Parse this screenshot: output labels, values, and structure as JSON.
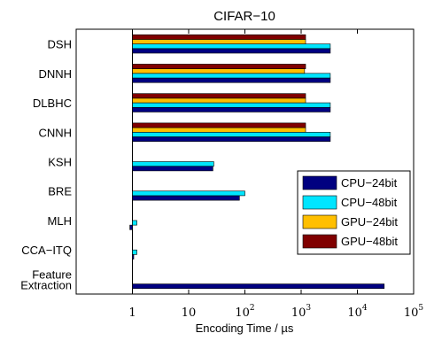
{
  "chart_data": {
    "type": "bar",
    "orientation": "horizontal",
    "title": "CIFAR−10",
    "xlabel": "Encoding Time / µs",
    "ylabel": "",
    "x_scale": "log",
    "xlim": [
      0.1,
      100000
    ],
    "x_ticks": [
      {
        "value": 1,
        "base": "1",
        "exp": ""
      },
      {
        "value": 10,
        "base": "10",
        "exp": ""
      },
      {
        "value": 100,
        "base": "10",
        "exp": "2"
      },
      {
        "value": 1000,
        "base": "10",
        "exp": "3"
      },
      {
        "value": 10000,
        "base": "10",
        "exp": "4"
      },
      {
        "value": 100000,
        "base": "10",
        "exp": "5"
      }
    ],
    "reference_line_x": 1,
    "categories": [
      "DSH",
      "DNNH",
      "DLBHC",
      "CNNH",
      "KSH",
      "BRE",
      "MLH",
      "CCA−ITQ",
      "Feature Extraction"
    ],
    "category_lines": {
      "Feature Extraction": [
        "Feature",
        "Extraction"
      ]
    },
    "series": [
      {
        "name": "CPU−24bit",
        "color": "#000080",
        "values": [
          3300,
          3300,
          3300,
          3300,
          27,
          80,
          0.9,
          1.05,
          30000
        ]
      },
      {
        "name": "CPU−48bit",
        "color": "#00e5ff",
        "values": [
          3300,
          3300,
          3300,
          3300,
          28,
          100,
          1.2,
          1.2,
          null
        ]
      },
      {
        "name": "GPU−24bit",
        "color": "#ffbf00",
        "values": [
          1200,
          1150,
          1200,
          1200,
          null,
          null,
          null,
          null,
          null
        ]
      },
      {
        "name": "GPU−48bit",
        "color": "#800000",
        "values": [
          1200,
          1200,
          1200,
          1200,
          null,
          null,
          null,
          null,
          null
        ]
      }
    ],
    "legend_position": "lower-right",
    "grid": false
  }
}
